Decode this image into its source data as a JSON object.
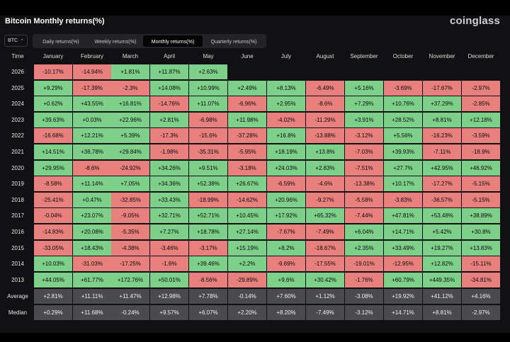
{
  "title": "Bitcoin Monthly returns(%)",
  "brand": "coinglass",
  "asset_selector": "BTC",
  "tabs": [
    {
      "label": "Daily returns(%)",
      "active": false
    },
    {
      "label": "Weekly returns(%)",
      "active": false
    },
    {
      "label": "Monthly returns(%)",
      "active": true
    },
    {
      "label": "Quarterly returns(%)",
      "active": false
    }
  ],
  "time_header": "Time",
  "months": [
    "January",
    "February",
    "March",
    "April",
    "May",
    "June",
    "July",
    "August",
    "September",
    "October",
    "November",
    "December"
  ],
  "rows": [
    {
      "year": "2026",
      "values": [
        "-10.17%",
        "-14.94%",
        "+1.81%",
        "+11.87%",
        "+2.63%",
        null,
        null,
        null,
        null,
        null,
        null,
        null
      ]
    },
    {
      "year": "2025",
      "values": [
        "+9.29%",
        "-17.39%",
        "-2.3%",
        "+14.08%",
        "+10.99%",
        "+2.49%",
        "+8.13%",
        "-6.49%",
        "+5.16%",
        "-3.69%",
        "-17.67%",
        "-2.97%"
      ]
    },
    {
      "year": "2024",
      "values": [
        "+0.62%",
        "+43.55%",
        "+16.81%",
        "-14.76%",
        "+11.07%",
        "-6.96%",
        "+2.95%",
        "-8.6%",
        "+7.29%",
        "+10.76%",
        "+37.29%",
        "-2.85%"
      ]
    },
    {
      "year": "2023",
      "values": [
        "+39.63%",
        "+0.03%",
        "+22.96%",
        "+2.81%",
        "-6.98%",
        "+11.98%",
        "-4.02%",
        "-11.29%",
        "+3.91%",
        "+28.52%",
        "+8.81%",
        "+12.18%"
      ]
    },
    {
      "year": "2022",
      "values": [
        "-16.68%",
        "+12.21%",
        "+5.39%",
        "-17.3%",
        "-15.6%",
        "-37.28%",
        "+16.8%",
        "-13.88%",
        "-3.12%",
        "+5.56%",
        "-16.23%",
        "-3.59%"
      ]
    },
    {
      "year": "2021",
      "values": [
        "+14.51%",
        "+36.78%",
        "+29.84%",
        "-1.98%",
        "-35.31%",
        "-5.95%",
        "+18.19%",
        "+13.8%",
        "-7.03%",
        "+39.93%",
        "-7.11%",
        "-18.9%"
      ]
    },
    {
      "year": "2020",
      "values": [
        "+29.95%",
        "-8.6%",
        "-24.92%",
        "+34.26%",
        "+9.51%",
        "-3.18%",
        "+24.03%",
        "+2.83%",
        "-7.51%",
        "+27.7%",
        "+42.95%",
        "+46.92%"
      ]
    },
    {
      "year": "2019",
      "values": [
        "-8.58%",
        "+11.14%",
        "+7.05%",
        "+34.36%",
        "+52.38%",
        "+26.67%",
        "-6.59%",
        "-4.6%",
        "-13.38%",
        "+10.17%",
        "-17.27%",
        "-5.15%"
      ]
    },
    {
      "year": "2018",
      "values": [
        "-25.41%",
        "+0.47%",
        "-32.85%",
        "+33.43%",
        "-18.99%",
        "-14.62%",
        "+20.96%",
        "-9.27%",
        "-5.58%",
        "-3.83%",
        "-36.57%",
        "-5.15%"
      ]
    },
    {
      "year": "2017",
      "values": [
        "-0.04%",
        "+23.07%",
        "-9.05%",
        "+32.71%",
        "+52.71%",
        "+10.45%",
        "+17.92%",
        "+65.32%",
        "-7.44%",
        "+47.81%",
        "+53.48%",
        "+38.89%"
      ]
    },
    {
      "year": "2016",
      "values": [
        "-14.83%",
        "+20.08%",
        "-5.35%",
        "+7.27%",
        "+18.78%",
        "+27.14%",
        "-7.67%",
        "-7.49%",
        "+6.04%",
        "+14.71%",
        "+5.42%",
        "+30.8%"
      ]
    },
    {
      "year": "2015",
      "values": [
        "-33.05%",
        "+18.43%",
        "-4.38%",
        "-3.46%",
        "-3.17%",
        "+15.19%",
        "+8.2%",
        "-18.67%",
        "+2.35%",
        "+33.49%",
        "+19.27%",
        "+13.83%"
      ]
    },
    {
      "year": "2014",
      "values": [
        "+10.03%",
        "-31.03%",
        "-17.25%",
        "-1.6%",
        "+39.46%",
        "+2.2%",
        "-9.69%",
        "-17.55%",
        "-19.01%",
        "-12.95%",
        "+12.82%",
        "-15.11%"
      ]
    },
    {
      "year": "2013",
      "values": [
        "+44.05%",
        "+61.77%",
        "+172.76%",
        "+50.01%",
        "-8.56%",
        "-29.89%",
        "+9.6%",
        "+30.42%",
        "-1.76%",
        "+60.79%",
        "+449.35%",
        "-34.81%"
      ]
    }
  ],
  "summary_rows": [
    {
      "label": "Average",
      "values": [
        "+2.81%",
        "+11.11%",
        "+11.47%",
        "+12.98%",
        "+7.78%",
        "-0.14%",
        "+7.60%",
        "+1.12%",
        "-3.08%",
        "+19.92%",
        "+41.12%",
        "+4.16%"
      ]
    },
    {
      "label": "Median",
      "values": [
        "+0.29%",
        "+11.68%",
        "-0.24%",
        "+9.57%",
        "+6.07%",
        "+2.20%",
        "+8.20%",
        "-7.49%",
        "-3.12%",
        "+14.71%",
        "+8.81%",
        "-2.97%"
      ]
    }
  ],
  "colors": {
    "positive": "#7dcf8a",
    "negative": "#e8807e",
    "summary": "#4b4b4f",
    "background": "#111113"
  }
}
